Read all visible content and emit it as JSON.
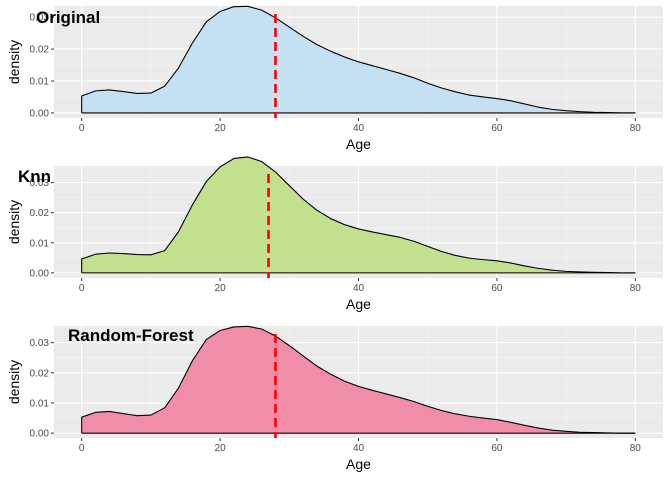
{
  "chart_data": [
    {
      "type": "area",
      "label": "Original",
      "fill": "#c5dff3",
      "xlabel": "Age",
      "ylabel": "density",
      "xlim": [
        -4,
        84
      ],
      "ylim": [
        -0.0016,
        0.0335
      ],
      "xticks": [
        0,
        20,
        40,
        60,
        80
      ],
      "yticks": [
        0.0,
        0.01,
        0.02,
        0.03
      ],
      "ytick_labels": [
        "0.00",
        "0.01",
        "0.02",
        "0.03"
      ],
      "vline": 28,
      "x": [
        0,
        2,
        4,
        6,
        8,
        10,
        12,
        14,
        16,
        18,
        20,
        22,
        24,
        26,
        28,
        30,
        32,
        34,
        36,
        38,
        40,
        42,
        44,
        46,
        48,
        50,
        52,
        54,
        56,
        58,
        60,
        62,
        64,
        66,
        68,
        70,
        72,
        74,
        76,
        78,
        80
      ],
      "y": [
        0.0053,
        0.0069,
        0.0072,
        0.0067,
        0.0061,
        0.0062,
        0.0084,
        0.0141,
        0.0219,
        0.0285,
        0.0318,
        0.0333,
        0.0334,
        0.0322,
        0.0298,
        0.0269,
        0.024,
        0.0214,
        0.0193,
        0.0175,
        0.016,
        0.0148,
        0.0136,
        0.0124,
        0.011,
        0.0093,
        0.0078,
        0.0066,
        0.0056,
        0.005,
        0.0045,
        0.0038,
        0.0028,
        0.0018,
        0.0011,
        0.0007,
        0.0004,
        0.0002,
        0.0001,
        0.0,
        0.0
      ]
    },
    {
      "type": "area",
      "label": "Knn",
      "fill": "#c3e08f",
      "xlabel": "Age",
      "ylabel": "density",
      "xlim": [
        -4,
        84
      ],
      "ylim": [
        -0.0017,
        0.0355
      ],
      "xticks": [
        0,
        20,
        40,
        60,
        80
      ],
      "yticks": [
        0.0,
        0.01,
        0.02,
        0.03
      ],
      "ytick_labels": [
        "0.00",
        "0.01",
        "0.02",
        "0.03"
      ],
      "vline": 27,
      "x": [
        0,
        2,
        4,
        6,
        8,
        10,
        12,
        14,
        16,
        18,
        20,
        22,
        24,
        26,
        28,
        30,
        32,
        34,
        36,
        38,
        40,
        42,
        44,
        46,
        48,
        50,
        52,
        54,
        56,
        58,
        60,
        62,
        64,
        66,
        68,
        70,
        72,
        74,
        76,
        78,
        80
      ],
      "y": [
        0.0046,
        0.0062,
        0.0066,
        0.0064,
        0.0061,
        0.006,
        0.0074,
        0.0137,
        0.0226,
        0.0303,
        0.0352,
        0.038,
        0.0385,
        0.037,
        0.0335,
        0.029,
        0.0245,
        0.0208,
        0.018,
        0.016,
        0.0146,
        0.0136,
        0.0127,
        0.0118,
        0.0105,
        0.0088,
        0.0071,
        0.0058,
        0.0049,
        0.0044,
        0.004,
        0.0033,
        0.0023,
        0.0015,
        0.0009,
        0.0005,
        0.0003,
        0.0002,
        0.0001,
        0.0,
        0.0
      ]
    },
    {
      "type": "area",
      "label": "Random-Forest",
      "fill": "#f08ea9",
      "xlabel": "Age",
      "ylabel": "density",
      "xlim": [
        -4,
        84
      ],
      "ylim": [
        -0.0016,
        0.0355
      ],
      "xticks": [
        0,
        20,
        40,
        60,
        80
      ],
      "yticks": [
        0.0,
        0.01,
        0.02,
        0.03
      ],
      "ytick_labels": [
        "0.00",
        "0.01",
        "0.02",
        "0.03"
      ],
      "vline": 28,
      "x": [
        0,
        2,
        4,
        6,
        8,
        10,
        12,
        14,
        16,
        18,
        20,
        22,
        24,
        26,
        28,
        30,
        32,
        34,
        36,
        38,
        40,
        42,
        44,
        46,
        48,
        50,
        52,
        54,
        56,
        58,
        60,
        62,
        64,
        66,
        68,
        70,
        72,
        74,
        76,
        78,
        80
      ],
      "y": [
        0.0053,
        0.0069,
        0.0072,
        0.0065,
        0.0058,
        0.006,
        0.0084,
        0.015,
        0.024,
        0.031,
        0.034,
        0.0352,
        0.0354,
        0.0345,
        0.0322,
        0.029,
        0.0256,
        0.0222,
        0.0195,
        0.0172,
        0.0155,
        0.0142,
        0.013,
        0.0118,
        0.0105,
        0.0089,
        0.0075,
        0.0064,
        0.0056,
        0.005,
        0.0045,
        0.0036,
        0.0026,
        0.0017,
        0.001,
        0.0006,
        0.0003,
        0.0002,
        0.0001,
        0.0,
        0.0
      ]
    }
  ]
}
